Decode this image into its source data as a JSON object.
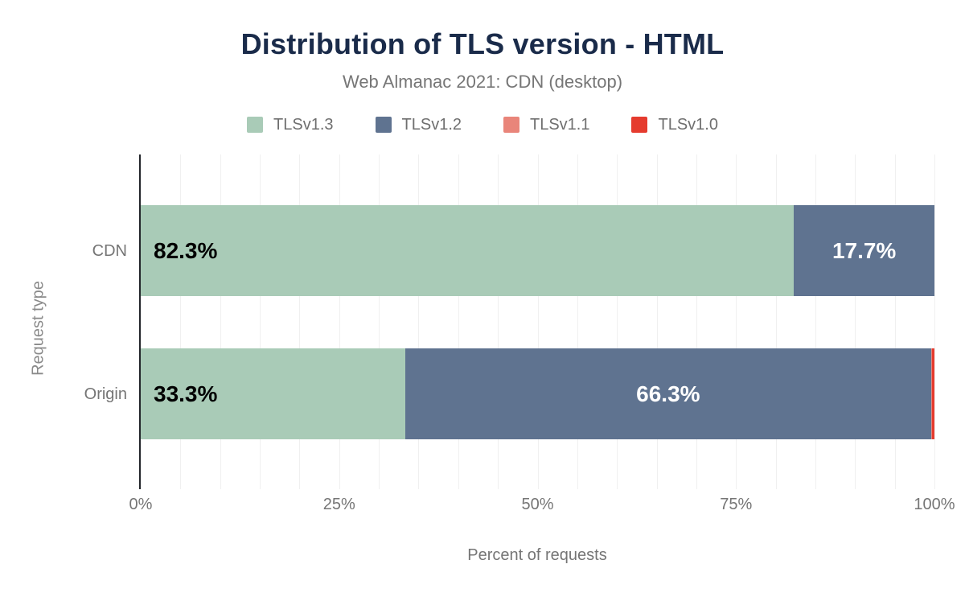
{
  "title": "Distribution of TLS version - HTML",
  "subtitle": "Web Almanac 2021: CDN (desktop)",
  "legend": [
    {
      "label": "TLSv1.3",
      "color": "#a9cbb7"
    },
    {
      "label": "TLSv1.2",
      "color": "#5f7390"
    },
    {
      "label": "TLSv1.1",
      "color": "#e9857a"
    },
    {
      "label": "TLSv1.0",
      "color": "#e53b2e"
    }
  ],
  "chart_data": {
    "type": "bar",
    "orientation": "horizontal",
    "stacked": true,
    "categories": [
      "CDN",
      "Origin"
    ],
    "series": [
      {
        "name": "TLSv1.3",
        "color": "#a9cbb7",
        "values": [
          82.3,
          33.3
        ],
        "labels": [
          "82.3%",
          "33.3%"
        ],
        "label_color": "#000000",
        "label_align": "left"
      },
      {
        "name": "TLSv1.2",
        "color": "#5f7390",
        "values": [
          17.7,
          66.3
        ],
        "labels": [
          "17.7%",
          "66.3%"
        ],
        "label_color": "#ffffff",
        "label_align": "center"
      },
      {
        "name": "TLSv1.1",
        "color": "#e9857a",
        "values": [
          0,
          0.1
        ],
        "labels": [
          "",
          ""
        ],
        "label_color": "#ffffff",
        "label_align": "center"
      },
      {
        "name": "TLSv1.0",
        "color": "#e53b2e",
        "values": [
          0,
          0.3
        ],
        "labels": [
          "",
          ""
        ],
        "label_color": "#ffffff",
        "label_align": "center"
      }
    ],
    "xlabel": "Percent of requests",
    "ylabel": "Request type",
    "x_ticks": [
      "0%",
      "25%",
      "50%",
      "75%",
      "100%"
    ],
    "x_range": [
      0,
      100
    ],
    "grid_step": 5,
    "grid": true,
    "legend_position": "top"
  }
}
